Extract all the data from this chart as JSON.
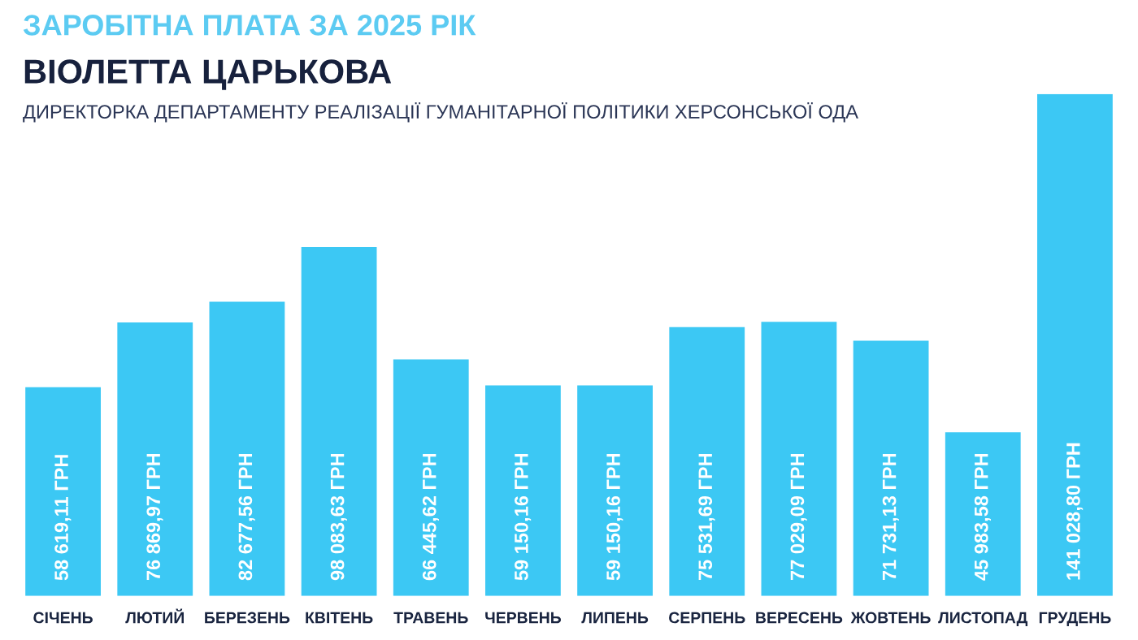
{
  "chart_data": {
    "type": "bar",
    "title": "ЗАРОБІТНА ПЛАТА ЗА 2025 РІК",
    "subtitle": "ВІОЛЕТТА ЦАРЬКОВА",
    "annotations": [
      "ДИРЕКТОРКА ДЕПАРТАМЕНТУ РЕАЛІЗАЦІЇ ГУМАНІТАРНОЇ ПОЛІТИКИ ХЕРСОНСЬКОЇ ОДА"
    ],
    "categories": [
      "СІЧЕНЬ",
      "ЛЮТИЙ",
      "БЕРЕЗЕНЬ",
      "КВІТЕНЬ",
      "ТРАВЕНЬ",
      "ЧЕРВЕНЬ",
      "ЛИПЕНЬ",
      "СЕРПЕНЬ",
      "ВЕРЕСЕНЬ",
      "ЖОВТЕНЬ",
      "ЛИСТОПАД",
      "ГРУДЕНЬ"
    ],
    "values": [
      58619.11,
      76869.97,
      82677.56,
      98083.63,
      66445.62,
      59150.16,
      59150.16,
      75531.69,
      77029.09,
      71731.13,
      45983.58,
      141028.8
    ],
    "value_labels": [
      "58 619,11 ГРН",
      "76 869,97 ГРН",
      "82 677,56 ГРН",
      "98 083,63 ГРН",
      "66 445,62 ГРН",
      "59 150,16 ГРН",
      "59 150,16 ГРН",
      "75 531,69 ГРН",
      "77 029,09 ГРН",
      "71 731,13 ГРН",
      "45 983,58 ГРН",
      "141 028,80 ГРН"
    ],
    "color": "#3cc8f4"
  }
}
